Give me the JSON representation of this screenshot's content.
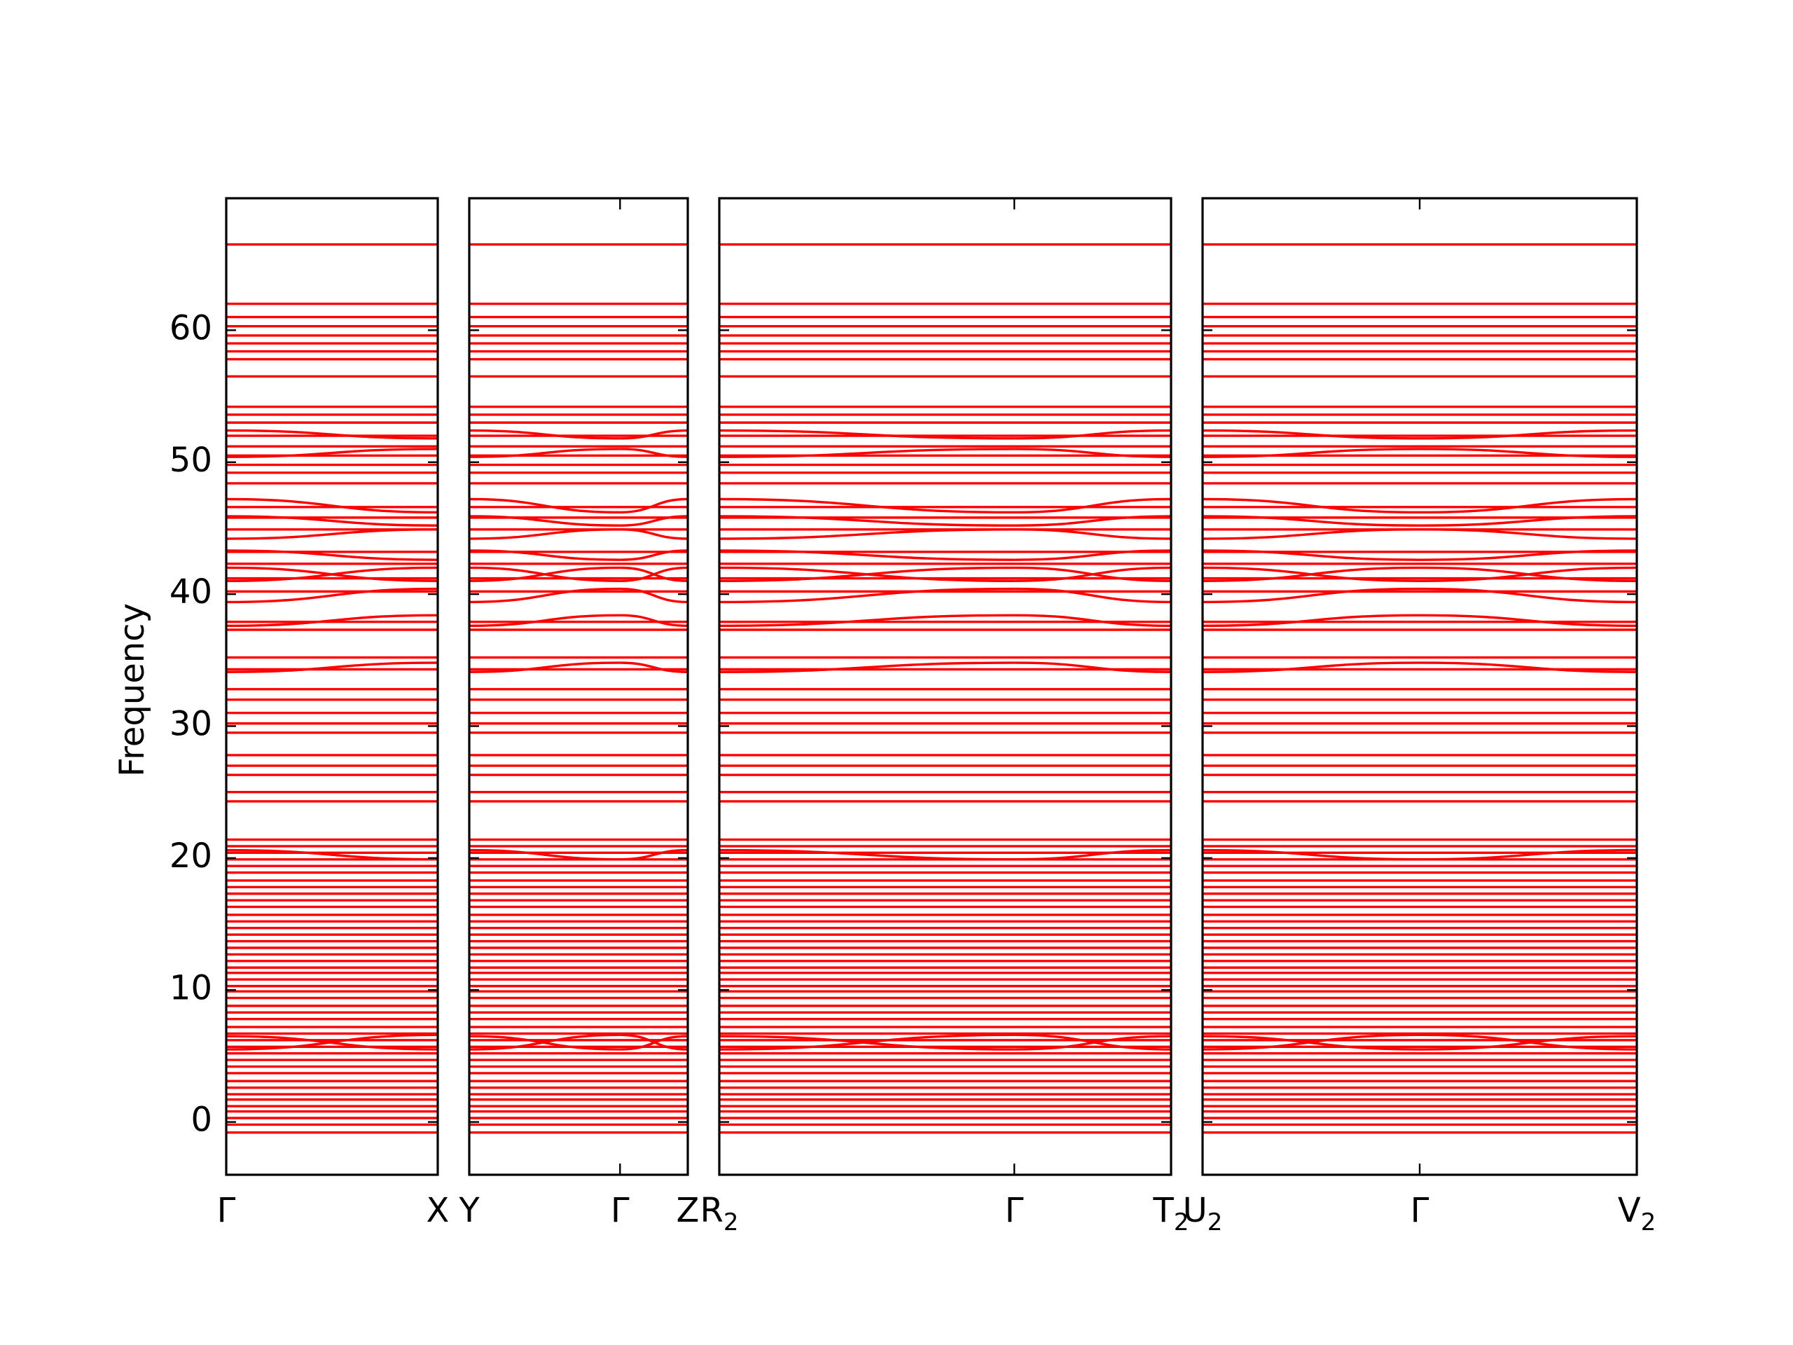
{
  "chart_data": {
    "type": "line",
    "title": "",
    "xlabel": "",
    "ylabel": "Frequency",
    "ylim": [
      -4,
      70
    ],
    "yticks": [
      0,
      10,
      20,
      30,
      40,
      50,
      60
    ],
    "grid": false,
    "line_color": "#ff0000",
    "panels": [
      {
        "segments": [
          {
            "from": 0,
            "to": 1
          }
        ],
        "labels": [
          {
            "pos": 0,
            "text": "Γ",
            "sub": ""
          },
          {
            "pos": 1,
            "text": "X",
            "sub": ""
          }
        ]
      },
      {
        "segments": [
          {
            "from": 0,
            "to": 0.69
          },
          {
            "from": 0.69,
            "to": 1
          }
        ],
        "labels": [
          {
            "pos": 0,
            "text": "Y",
            "sub": ""
          },
          {
            "pos": 0.69,
            "text": "Γ",
            "sub": ""
          },
          {
            "pos": 1,
            "text": "Z",
            "sub": ""
          }
        ]
      },
      {
        "segments": [
          {
            "from": 0,
            "to": 0.653
          },
          {
            "from": 0.653,
            "to": 1
          }
        ],
        "labels": [
          {
            "pos": 0,
            "text": "R",
            "sub": "2"
          },
          {
            "pos": 0.653,
            "text": "Γ",
            "sub": ""
          },
          {
            "pos": 1,
            "text": "T",
            "sub": "2"
          }
        ]
      },
      {
        "segments": [
          {
            "from": 0,
            "to": 0.5
          },
          {
            "from": 0.5,
            "to": 1
          }
        ],
        "labels": [
          {
            "pos": 0,
            "text": "U",
            "sub": "2"
          },
          {
            "pos": 0.5,
            "text": "Γ",
            "sub": ""
          },
          {
            "pos": 1,
            "text": "V",
            "sub": "2"
          }
        ]
      }
    ],
    "flat_bands": [
      -0.8,
      -0.2,
      0.3,
      0.8,
      1.2,
      1.7,
      2.1,
      2.6,
      3.1,
      3.7,
      4.2,
      4.7,
      5.2,
      5.7,
      6.2,
      6.7,
      7.2,
      7.8,
      8.3,
      8.8,
      9.4,
      9.9,
      10.3,
      10.8,
      11.3,
      11.7,
      12.2,
      12.7,
      13.2,
      13.7,
      14.2,
      14.7,
      15.2,
      15.7,
      16.3,
      16.8,
      17.3,
      17.8,
      18.3,
      18.9,
      19.4,
      19.9,
      20.4,
      20.9,
      21.4,
      24.3,
      25.0,
      26.3,
      27.0,
      27.8,
      29.5,
      30.2,
      31.0,
      32.0,
      32.8,
      34.3,
      35.2,
      37.3,
      37.9,
      40.2,
      41.2,
      42.3,
      43.2,
      44.9,
      45.8,
      46.6,
      48.4,
      49.2,
      49.8,
      50.5,
      51.2,
      52.0,
      53.0,
      53.6,
      54.2,
      56.5,
      57.8,
      58.4,
      59.0,
      59.6,
      60.3,
      61.0,
      62.0,
      66.5
    ],
    "dispersive_bands": [
      {
        "start": 6.5,
        "end": 5.5
      },
      {
        "start": 5.5,
        "end": 6.6
      },
      {
        "start": 20.6,
        "end": 19.9
      },
      {
        "start": 34.1,
        "end": 34.8
      },
      {
        "start": 37.6,
        "end": 38.4
      },
      {
        "start": 39.4,
        "end": 40.4
      },
      {
        "start": 41.0,
        "end": 42.0
      },
      {
        "start": 42.0,
        "end": 41.0
      },
      {
        "start": 43.3,
        "end": 42.6
      },
      {
        "start": 44.2,
        "end": 44.9
      },
      {
        "start": 45.9,
        "end": 45.2
      },
      {
        "start": 47.2,
        "end": 46.2
      },
      {
        "start": 50.4,
        "end": 51.0
      },
      {
        "start": 52.4,
        "end": 51.8
      }
    ]
  }
}
